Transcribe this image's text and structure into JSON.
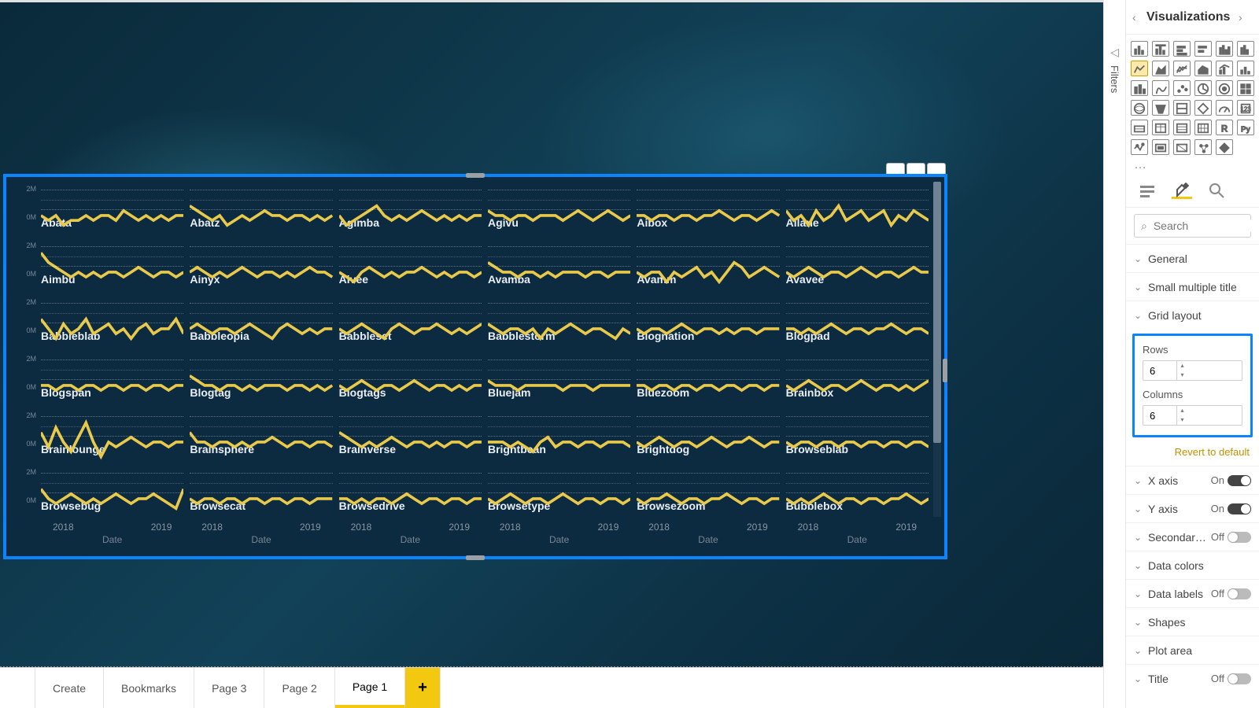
{
  "canvas": {
    "background_colors": [
      "#0a2a3a",
      "#0e3548",
      "#124258",
      "#0d3145",
      "#0a2838"
    ],
    "selection_border": "#0a84ff"
  },
  "chart": {
    "type": "small-multiples-line",
    "line_color": "#e9c94b",
    "line_width": 2,
    "grid_color": "rgba(255,255,255,.35)",
    "label_color": "#e8eef4",
    "label_fontsize": 14,
    "y_ticks": [
      "2M",
      "0M"
    ],
    "x_ticks": [
      "2018",
      "2019"
    ],
    "x_title": "Date",
    "rows": 6,
    "cols": 6,
    "cells": [
      {
        "name": "Abata",
        "pts": [
          18,
          17,
          18,
          16,
          17,
          17,
          18,
          17,
          18,
          18,
          17,
          19,
          18,
          17,
          18,
          17,
          18,
          17,
          18,
          18
        ]
      },
      {
        "name": "Abatz",
        "pts": [
          20,
          19,
          18,
          17,
          18,
          16,
          17,
          18,
          17,
          18,
          19,
          18,
          18,
          17,
          18,
          18,
          17,
          18,
          17,
          18
        ]
      },
      {
        "name": "Agimba",
        "pts": [
          18,
          16,
          17,
          18,
          19,
          20,
          18,
          17,
          18,
          17,
          18,
          19,
          18,
          17,
          18,
          17,
          18,
          17,
          18,
          18
        ]
      },
      {
        "name": "Agivu",
        "pts": [
          19,
          18,
          18,
          17,
          18,
          18,
          17,
          18,
          18,
          18,
          17,
          18,
          19,
          18,
          17,
          18,
          19,
          18,
          17,
          18
        ]
      },
      {
        "name": "Aibox",
        "pts": [
          18,
          18,
          17,
          18,
          18,
          17,
          18,
          18,
          17,
          18,
          18,
          19,
          18,
          17,
          18,
          18,
          17,
          18,
          19,
          18
        ]
      },
      {
        "name": "Ailane",
        "pts": [
          19,
          17,
          18,
          16,
          19,
          17,
          18,
          20,
          17,
          18,
          19,
          17,
          18,
          19,
          16,
          18,
          17,
          19,
          18,
          17
        ]
      },
      {
        "name": "Aimbu",
        "pts": [
          22,
          20,
          19,
          18,
          17,
          18,
          17,
          18,
          17,
          18,
          18,
          17,
          18,
          19,
          18,
          17,
          18,
          18,
          17,
          18
        ]
      },
      {
        "name": "Ainyx",
        "pts": [
          18,
          19,
          18,
          17,
          18,
          17,
          18,
          19,
          18,
          17,
          18,
          18,
          17,
          18,
          17,
          18,
          19,
          18,
          18,
          17
        ]
      },
      {
        "name": "Aivee",
        "pts": [
          18,
          17,
          16,
          18,
          19,
          18,
          17,
          18,
          17,
          18,
          18,
          19,
          18,
          17,
          18,
          17,
          18,
          18,
          17,
          18
        ]
      },
      {
        "name": "Avamba",
        "pts": [
          20,
          19,
          18,
          18,
          17,
          18,
          18,
          17,
          18,
          17,
          18,
          18,
          18,
          17,
          18,
          18,
          17,
          18,
          18,
          18
        ]
      },
      {
        "name": "Avamm",
        "pts": [
          18,
          17,
          18,
          18,
          16,
          18,
          17,
          18,
          19,
          17,
          18,
          16,
          18,
          20,
          19,
          17,
          18,
          19,
          18,
          17
        ]
      },
      {
        "name": "Avavee",
        "pts": [
          18,
          17,
          18,
          19,
          18,
          17,
          18,
          18,
          17,
          18,
          19,
          18,
          17,
          18,
          18,
          17,
          18,
          19,
          18,
          18
        ]
      },
      {
        "name": "Babbleblab",
        "pts": [
          20,
          18,
          16,
          19,
          17,
          18,
          20,
          17,
          18,
          19,
          17,
          18,
          16,
          18,
          19,
          17,
          18,
          18,
          20,
          17
        ]
      },
      {
        "name": "Babbleopia",
        "pts": [
          18,
          19,
          18,
          17,
          18,
          18,
          17,
          18,
          19,
          18,
          17,
          16,
          18,
          19,
          18,
          17,
          18,
          17,
          18,
          18
        ]
      },
      {
        "name": "Babbleset",
        "pts": [
          18,
          17,
          18,
          19,
          18,
          17,
          16,
          18,
          19,
          18,
          17,
          18,
          18,
          19,
          18,
          17,
          18,
          17,
          18,
          19
        ]
      },
      {
        "name": "Babblestorm",
        "pts": [
          19,
          18,
          17,
          18,
          18,
          17,
          18,
          16,
          18,
          17,
          18,
          19,
          18,
          17,
          18,
          18,
          17,
          16,
          18,
          17
        ]
      },
      {
        "name": "Blognation",
        "pts": [
          18,
          17,
          18,
          18,
          17,
          18,
          19,
          18,
          17,
          18,
          18,
          17,
          18,
          17,
          18,
          18,
          17,
          18,
          18,
          18
        ]
      },
      {
        "name": "Blogpad",
        "pts": [
          18,
          18,
          17,
          18,
          17,
          18,
          19,
          18,
          17,
          18,
          18,
          17,
          18,
          18,
          19,
          18,
          17,
          18,
          18,
          17
        ]
      },
      {
        "name": "Blogspan",
        "pts": [
          18,
          18,
          17,
          18,
          18,
          17,
          18,
          18,
          17,
          18,
          18,
          17,
          18,
          18,
          17,
          18,
          18,
          17,
          18,
          18
        ]
      },
      {
        "name": "Blogtag",
        "pts": [
          20,
          19,
          18,
          18,
          17,
          18,
          18,
          17,
          18,
          17,
          18,
          18,
          18,
          17,
          18,
          18,
          17,
          18,
          17,
          18
        ]
      },
      {
        "name": "Blogtags",
        "pts": [
          18,
          17,
          18,
          19,
          18,
          17,
          18,
          18,
          17,
          18,
          19,
          18,
          17,
          18,
          18,
          17,
          18,
          17,
          18,
          18
        ]
      },
      {
        "name": "Bluejam",
        "pts": [
          19,
          18,
          18,
          18,
          17,
          18,
          18,
          18,
          18,
          18,
          17,
          18,
          18,
          18,
          17,
          18,
          18,
          18,
          18,
          18
        ]
      },
      {
        "name": "Bluezoom",
        "pts": [
          18,
          18,
          17,
          18,
          18,
          17,
          18,
          18,
          17,
          18,
          18,
          17,
          18,
          18,
          17,
          18,
          18,
          17,
          18,
          18
        ]
      },
      {
        "name": "Brainbox",
        "pts": [
          18,
          17,
          18,
          19,
          18,
          17,
          18,
          18,
          17,
          18,
          19,
          18,
          17,
          18,
          18,
          17,
          18,
          17,
          18,
          19
        ]
      },
      {
        "name": "Brainlounge",
        "pts": [
          20,
          17,
          21,
          18,
          16,
          19,
          22,
          18,
          15,
          18,
          17,
          18,
          19,
          18,
          17,
          18,
          18,
          17,
          18,
          18
        ]
      },
      {
        "name": "Brainsphere",
        "pts": [
          20,
          18,
          18,
          17,
          18,
          18,
          17,
          18,
          17,
          18,
          18,
          19,
          18,
          17,
          18,
          18,
          17,
          18,
          18,
          17
        ]
      },
      {
        "name": "Brainverse",
        "pts": [
          20,
          19,
          18,
          17,
          18,
          17,
          18,
          19,
          18,
          17,
          18,
          18,
          17,
          18,
          17,
          18,
          18,
          17,
          18,
          18
        ]
      },
      {
        "name": "Brightbean",
        "pts": [
          18,
          18,
          18,
          17,
          18,
          17,
          16,
          18,
          19,
          17,
          18,
          18,
          17,
          18,
          18,
          17,
          18,
          18,
          18,
          17
        ]
      },
      {
        "name": "Brightdog",
        "pts": [
          18,
          17,
          18,
          19,
          18,
          17,
          18,
          18,
          17,
          18,
          19,
          18,
          17,
          18,
          18,
          19,
          18,
          17,
          18,
          18
        ]
      },
      {
        "name": "Browseblab",
        "pts": [
          18,
          17,
          18,
          18,
          17,
          18,
          18,
          17,
          18,
          18,
          17,
          18,
          18,
          17,
          18,
          18,
          17,
          18,
          18,
          17
        ]
      },
      {
        "name": "Browsebug",
        "pts": [
          20,
          18,
          17,
          18,
          19,
          18,
          17,
          18,
          17,
          18,
          19,
          18,
          17,
          18,
          18,
          19,
          18,
          17,
          16,
          20
        ]
      },
      {
        "name": "Browsecat",
        "pts": [
          18,
          17,
          18,
          18,
          17,
          18,
          18,
          17,
          18,
          18,
          17,
          18,
          18,
          17,
          18,
          18,
          17,
          18,
          18,
          18
        ]
      },
      {
        "name": "Browsedrive",
        "pts": [
          18,
          18,
          17,
          18,
          17,
          18,
          18,
          17,
          18,
          19,
          18,
          17,
          18,
          18,
          17,
          18,
          18,
          17,
          18,
          18
        ]
      },
      {
        "name": "Browsetype",
        "pts": [
          18,
          17,
          18,
          19,
          18,
          17,
          18,
          18,
          17,
          18,
          19,
          18,
          17,
          18,
          18,
          17,
          18,
          18,
          17,
          18
        ]
      },
      {
        "name": "Browsezoom",
        "pts": [
          18,
          17,
          18,
          18,
          19,
          18,
          17,
          18,
          18,
          17,
          18,
          18,
          19,
          18,
          17,
          18,
          18,
          17,
          18,
          18
        ]
      },
      {
        "name": "Bubblebox",
        "pts": [
          18,
          17,
          18,
          17,
          18,
          19,
          18,
          17,
          18,
          18,
          17,
          18,
          18,
          17,
          18,
          18,
          19,
          18,
          17,
          18
        ]
      }
    ]
  },
  "tabs": {
    "items": [
      "",
      "Create",
      "Bookmarks",
      "Page 3",
      "Page 2",
      "Page 1"
    ],
    "active_index": 5,
    "add_glyph": "+"
  },
  "filters": {
    "label": "Filters"
  },
  "viz_pane": {
    "title": "Visualizations",
    "search_placeholder": "Search",
    "grid_layout": {
      "label": "Grid layout",
      "rows_label": "Rows",
      "rows_value": "6",
      "cols_label": "Columns",
      "cols_value": "6"
    },
    "revert": "Revert to default",
    "props": [
      {
        "key": "general",
        "label": "General",
        "toggle": null
      },
      {
        "key": "smtitle",
        "label": "Small multiple title",
        "toggle": null
      },
      {
        "key": "gridlayout",
        "label": "Grid layout",
        "toggle": null,
        "expanded": true
      },
      {
        "key": "xaxis",
        "label": "X axis",
        "toggle": true
      },
      {
        "key": "yaxis",
        "label": "Y axis",
        "toggle": true
      },
      {
        "key": "secondary",
        "label": "Secondar…",
        "toggle": false
      },
      {
        "key": "datacolors",
        "label": "Data colors",
        "toggle": null
      },
      {
        "key": "datalabels",
        "label": "Data labels",
        "toggle": false
      },
      {
        "key": "shapes",
        "label": "Shapes",
        "toggle": null
      },
      {
        "key": "plotarea",
        "label": "Plot area",
        "toggle": null
      },
      {
        "key": "title",
        "label": "Title",
        "toggle": false
      }
    ],
    "on_text": "On",
    "off_text": "Off"
  }
}
